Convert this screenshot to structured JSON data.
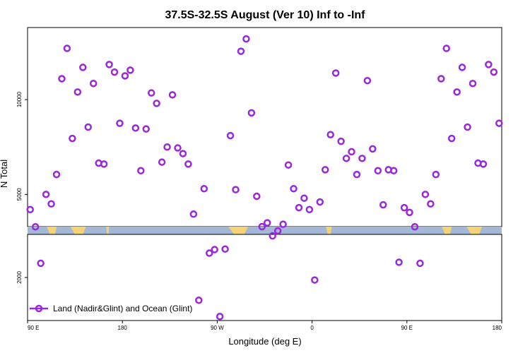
{
  "chart_data": {
    "type": "scatter",
    "title": "37.5S-32.5S August (Ver 10)   Inf to -Inf",
    "xlabel": "Longitude (deg E)",
    "ylabel": "N Total",
    "x_ticks": [
      {
        "value": 90,
        "label": "90 E"
      },
      {
        "value": 180,
        "label": "180"
      },
      {
        "value": 270,
        "label": "90 W"
      },
      {
        "value": 360,
        "label": "0"
      },
      {
        "value": 450,
        "label": "90 E"
      },
      {
        "value": 540,
        "label": "180"
      }
    ],
    "xlim": [
      90,
      540
    ],
    "upper_panel": {
      "ylim": [
        3300,
        13800
      ],
      "y_ticks": [
        {
          "value": 5000,
          "label": "5000"
        },
        {
          "value": 10000,
          "label": "10000"
        }
      ]
    },
    "lower_panel": {
      "ylim": [
        1150,
        2850
      ],
      "y_ticks": [
        {
          "value": 2000,
          "label": "2000"
        }
      ]
    },
    "map_strip": {
      "ocean_color": "#a3b8d6",
      "land_color": "#f5d478"
    },
    "legend": {
      "label": "Land (Nadir&Glint) and Ocean (Glint)",
      "position": "bottom-left"
    },
    "series": [
      {
        "name": "Land (Nadir&Glint) and Ocean (Glint)",
        "color": "#9b27dc",
        "points": [
          [
            92.5,
            4200
          ],
          [
            97.5,
            3000
          ],
          [
            102.5,
            2280
          ],
          [
            107.5,
            5000
          ],
          [
            112.5,
            4500
          ],
          [
            117.5,
            6050
          ],
          [
            122.5,
            11100
          ],
          [
            127.5,
            12700
          ],
          [
            132.5,
            7950
          ],
          [
            137.5,
            10400
          ],
          [
            142.5,
            11700
          ],
          [
            147.5,
            8550
          ],
          [
            152.5,
            10850
          ],
          [
            157.5,
            6650
          ],
          [
            162.5,
            6600
          ],
          [
            167.5,
            11850
          ],
          [
            172.5,
            11450
          ],
          [
            177.5,
            8750
          ],
          [
            182.5,
            11250
          ],
          [
            187.5,
            11550
          ],
          [
            192.5,
            8500
          ],
          [
            197.5,
            6250
          ],
          [
            202.5,
            8450
          ],
          [
            207.5,
            10350
          ],
          [
            212.5,
            9800
          ],
          [
            217.5,
            6700
          ],
          [
            222.5,
            7500
          ],
          [
            227.5,
            10250
          ],
          [
            232.5,
            7450
          ],
          [
            237.5,
            7150
          ],
          [
            242.5,
            6600
          ],
          [
            247.5,
            3250
          ],
          [
            252.5,
            1550
          ],
          [
            257.5,
            5300
          ],
          [
            262.5,
            2480
          ],
          [
            267.5,
            2550
          ],
          [
            272.5,
            1230
          ],
          [
            277.5,
            2560
          ],
          [
            282.5,
            8100
          ],
          [
            287.5,
            5250
          ],
          [
            292.5,
            12550
          ],
          [
            297.5,
            13200
          ],
          [
            302.5,
            9300
          ],
          [
            307.5,
            4900
          ],
          [
            312.5,
            3300
          ],
          [
            317.5,
            3500
          ],
          [
            322.5,
            2820
          ],
          [
            327.5,
            2920
          ],
          [
            332.5,
            3050
          ],
          [
            337.5,
            6550
          ],
          [
            342.5,
            5300
          ],
          [
            347.5,
            4300
          ],
          [
            352.5,
            4800
          ],
          [
            357.5,
            4200
          ],
          [
            362.5,
            1950
          ],
          [
            367.5,
            4600
          ],
          [
            372.5,
            6300
          ],
          [
            377.5,
            8150
          ],
          [
            382.5,
            11400
          ],
          [
            387.5,
            7800
          ],
          [
            392.5,
            6900
          ],
          [
            397.5,
            7250
          ],
          [
            402.5,
            6050
          ],
          [
            407.5,
            6900
          ],
          [
            412.5,
            11000
          ],
          [
            417.5,
            7400
          ],
          [
            422.5,
            6250
          ],
          [
            427.5,
            4450
          ],
          [
            432.5,
            6300
          ],
          [
            437.5,
            6250
          ],
          [
            442.5,
            2300
          ],
          [
            447.5,
            4300
          ],
          [
            452.5,
            4050
          ],
          [
            457.5,
            3000
          ],
          [
            462.5,
            2280
          ],
          [
            467.5,
            5000
          ],
          [
            472.5,
            4500
          ],
          [
            477.5,
            6050
          ],
          [
            482.5,
            11100
          ],
          [
            487.5,
            12700
          ],
          [
            492.5,
            7950
          ],
          [
            497.5,
            10400
          ],
          [
            502.5,
            11700
          ],
          [
            507.5,
            8550
          ],
          [
            512.5,
            10850
          ],
          [
            517.5,
            6650
          ],
          [
            522.5,
            6600
          ],
          [
            527.5,
            11850
          ],
          [
            532.5,
            11450
          ],
          [
            537.5,
            8750
          ]
        ]
      }
    ]
  }
}
